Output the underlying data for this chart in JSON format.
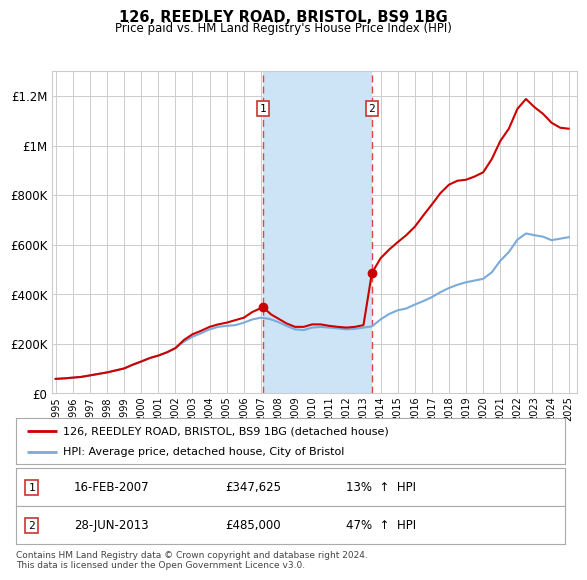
{
  "title": "126, REEDLEY ROAD, BRISTOL, BS9 1BG",
  "subtitle": "Price paid vs. HM Land Registry's House Price Index (HPI)",
  "ylabel_ticks": [
    "£0",
    "£200K",
    "£400K",
    "£600K",
    "£800K",
    "£1M",
    "£1.2M"
  ],
  "ytick_vals": [
    0,
    200000,
    400000,
    600000,
    800000,
    1000000,
    1200000
  ],
  "ylim": [
    0,
    1300000
  ],
  "xlim_start": 1994.8,
  "xlim_end": 2025.5,
  "sale1_date": 2007.12,
  "sale1_price": 347625,
  "sale1_label": "1",
  "sale2_date": 2013.49,
  "sale2_price": 485000,
  "sale2_label": "2",
  "legend_line1": "126, REEDLEY ROAD, BRISTOL, BS9 1BG (detached house)",
  "legend_line2": "HPI: Average price, detached house, City of Bristol",
  "footer": "Contains HM Land Registry data © Crown copyright and database right 2024.\nThis data is licensed under the Open Government Licence v3.0.",
  "line_color_property": "#cc0000",
  "line_color_hpi": "#7aabda",
  "shaded_region_color": "#cce4f5",
  "dashed_line_color": "#dd4444",
  "background_color": "#ffffff",
  "grid_color": "#cccccc",
  "hpi_years": [
    1995.0,
    1995.5,
    1996.0,
    1996.5,
    1997.0,
    1997.5,
    1998.0,
    1998.5,
    1999.0,
    1999.5,
    2000.0,
    2000.5,
    2001.0,
    2001.5,
    2002.0,
    2002.5,
    2003.0,
    2003.5,
    2004.0,
    2004.5,
    2005.0,
    2005.5,
    2006.0,
    2006.5,
    2007.0,
    2007.5,
    2008.0,
    2008.5,
    2009.0,
    2009.5,
    2010.0,
    2010.5,
    2011.0,
    2011.5,
    2012.0,
    2012.5,
    2013.0,
    2013.5,
    2014.0,
    2014.5,
    2015.0,
    2015.5,
    2016.0,
    2016.5,
    2017.0,
    2017.5,
    2018.0,
    2018.5,
    2019.0,
    2019.5,
    2020.0,
    2020.5,
    2021.0,
    2021.5,
    2022.0,
    2022.5,
    2023.0,
    2023.5,
    2024.0,
    2024.5,
    2025.0
  ],
  "hpi_values": [
    58000,
    60000,
    63000,
    66000,
    72000,
    78000,
    84000,
    92000,
    100000,
    115000,
    128000,
    142000,
    152000,
    165000,
    182000,
    208000,
    228000,
    242000,
    258000,
    268000,
    272000,
    275000,
    285000,
    298000,
    305000,
    300000,
    288000,
    272000,
    258000,
    255000,
    265000,
    268000,
    265000,
    262000,
    258000,
    260000,
    265000,
    270000,
    298000,
    320000,
    335000,
    342000,
    358000,
    372000,
    388000,
    408000,
    425000,
    438000,
    448000,
    455000,
    462000,
    488000,
    535000,
    570000,
    620000,
    645000,
    638000,
    632000,
    618000,
    624000,
    630000
  ],
  "prop_years": [
    1995.0,
    1995.5,
    1996.0,
    1996.5,
    1997.0,
    1997.5,
    1998.0,
    1998.5,
    1999.0,
    1999.5,
    2000.0,
    2000.5,
    2001.0,
    2001.5,
    2002.0,
    2002.5,
    2003.0,
    2003.5,
    2004.0,
    2004.5,
    2005.0,
    2005.5,
    2006.0,
    2006.5,
    2007.12,
    2007.6,
    2008.0,
    2008.5,
    2009.0,
    2009.5,
    2010.0,
    2010.5,
    2011.0,
    2011.5,
    2012.0,
    2012.5,
    2013.0,
    2013.49,
    2014.0,
    2014.5,
    2015.0,
    2015.5,
    2016.0,
    2016.5,
    2017.0,
    2017.5,
    2018.0,
    2018.5,
    2019.0,
    2019.5,
    2020.0,
    2020.5,
    2021.0,
    2021.5,
    2022.0,
    2022.5,
    2023.0,
    2023.5,
    2024.0,
    2024.5,
    2025.0
  ],
  "prop_values": [
    58000,
    60000,
    63000,
    66000,
    72000,
    78000,
    84000,
    92000,
    100000,
    115000,
    128000,
    142000,
    152000,
    165000,
    182000,
    215000,
    238000,
    252000,
    268000,
    278000,
    285000,
    295000,
    305000,
    328000,
    347625,
    318000,
    302000,
    282000,
    268000,
    268000,
    278000,
    278000,
    272000,
    268000,
    265000,
    268000,
    275000,
    485000,
    545000,
    580000,
    610000,
    638000,
    672000,
    718000,
    762000,
    808000,
    842000,
    858000,
    862000,
    875000,
    892000,
    945000,
    1018000,
    1068000,
    1148000,
    1188000,
    1155000,
    1128000,
    1092000,
    1072000,
    1068000
  ]
}
